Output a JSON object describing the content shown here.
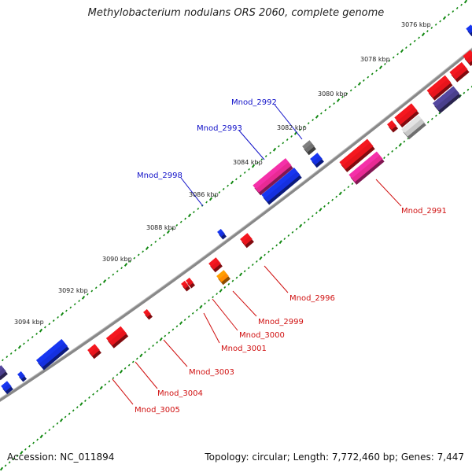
{
  "header": {
    "title": "Methylobacterium nodulans ORS 2060, complete genome"
  },
  "footer": {
    "accession": "Accession: NC_011894",
    "summary": "Topology: circular; Length: 7,772,460 bp; Genes: 7,447"
  },
  "colors": {
    "backbone": "#888888",
    "tick": "#118811",
    "red": "#e8141c",
    "blue": "#1530e0",
    "navy": "#4a3f8c",
    "pink": "#e82a94",
    "gray": "#707070",
    "lightgray": "#c8c8c8",
    "orange": "#ff8c00",
    "label_blue": "#1010c8",
    "label_red": "#d01010"
  },
  "scale_labels": [
    "3076 kbp",
    "3078 kbp",
    "3080 kbp",
    "3082 kbp",
    "3084 kbp",
    "3086 kbp",
    "3088 kbp",
    "3090 kbp",
    "3092 kbp",
    "3094 kbp"
  ],
  "gene_labels": {
    "above": [
      "Mnod_2992",
      "Mnod_2993",
      "Mnod_2998"
    ],
    "below": [
      "Mnod_2991",
      "Mnod_2996",
      "Mnod_2999",
      "Mnod_3000",
      "Mnod_3001",
      "Mnod_3003",
      "Mnod_3004",
      "Mnod_3005"
    ]
  }
}
